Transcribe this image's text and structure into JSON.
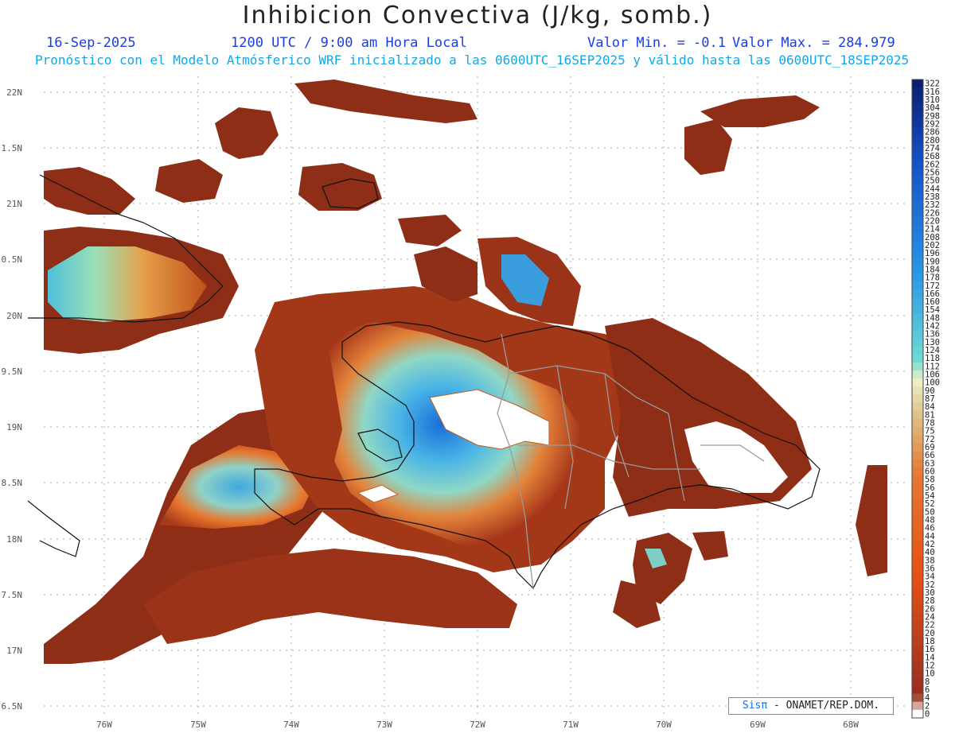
{
  "header": {
    "title": "Inhibicion Convectiva (J/kg, somb.)",
    "date": "16-Sep-2025",
    "time": "1200 UTC / 9:00 am Hora Local",
    "valmin": "Valor Min. = -0.1",
    "valmax": "Valor Max. = 284.979",
    "forecast": "Pronóstico con el Modelo Atmósferico WRF inicializado a las 0600UTC_16SEP2025 y válido hasta las  0600UTC_18SEP2025"
  },
  "map": {
    "lat_labels": [
      "22N",
      "1.5N",
      "21N",
      "0.5N",
      "20N",
      "9.5N",
      "19N",
      "8.5N",
      "18N",
      "7.5N",
      "17N",
      "6.5N"
    ],
    "lon_labels": [
      "76W",
      "75W",
      "74W",
      "73W",
      "72W",
      "71W",
      "70W",
      "69W",
      "68W"
    ]
  },
  "colorbar": {
    "labels": [
      "322",
      "316",
      "310",
      "304",
      "298",
      "292",
      "286",
      "280",
      "274",
      "268",
      "262",
      "256",
      "250",
      "244",
      "238",
      "232",
      "226",
      "220",
      "214",
      "208",
      "202",
      "196",
      "190",
      "184",
      "178",
      "172",
      "166",
      "160",
      "154",
      "148",
      "142",
      "136",
      "130",
      "124",
      "118",
      "112",
      "106",
      "100",
      "90",
      "87",
      "84",
      "81",
      "78",
      "75",
      "72",
      "69",
      "66",
      "63",
      "60",
      "58",
      "56",
      "54",
      "52",
      "50",
      "48",
      "46",
      "44",
      "42",
      "40",
      "38",
      "36",
      "34",
      "32",
      "30",
      "28",
      "26",
      "24",
      "22",
      "20",
      "18",
      "16",
      "14",
      "12",
      "10",
      "8",
      "6",
      "4",
      "2",
      "0"
    ]
  },
  "credit": {
    "sis": "Sisπ",
    "text": " - ONAMET/REP.DOM."
  },
  "colors": {
    "ocean": "#ffffff",
    "cin_low": "#8b2c14",
    "cin_mid": "#e8631e",
    "cin_high": "#33b5e0",
    "cin_max": "#1050c8",
    "border": "#222222",
    "provinces": "#9a9a9a"
  }
}
